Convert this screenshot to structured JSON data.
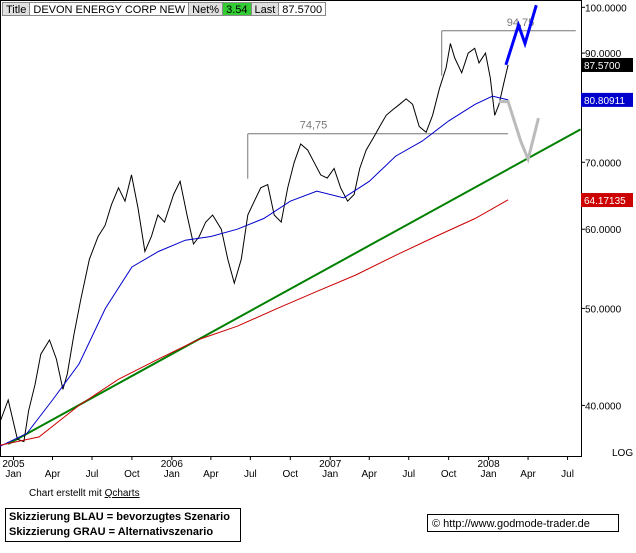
{
  "header": {
    "title_label": "Title",
    "title_value": "DEVON ENERGY CORP NEW",
    "netpct_label": "Net%",
    "netpct_value": "3.54",
    "last_label": "Last",
    "last_value": "87.5700"
  },
  "footer": {
    "created_prefix": "Chart erstellt mit ",
    "created_link": "Qcharts",
    "legend_line1": "Skizzierung BLAU = bevorzugtes Szenario",
    "legend_line2": "Skizzierung GRAU = Alternativszenario",
    "copyright_url": "© http://www.godmode-trader.de"
  },
  "chart_data": {
    "type": "line",
    "scale": "log",
    "ylim": [
      35.6,
      101.7
    ],
    "y_ticks": [
      {
        "value": 100,
        "label": "100.0000"
      },
      {
        "value": 90,
        "label": "90.0000"
      },
      {
        "value": 70,
        "label": "70.0000"
      },
      {
        "value": 60,
        "label": "60.0000"
      },
      {
        "value": 50,
        "label": "50.0000"
      },
      {
        "value": 40,
        "label": "40.0000"
      }
    ],
    "scale_label": "LOG",
    "x_range": [
      "2004-12-01",
      "2008-08-01"
    ],
    "x_ticks": [
      {
        "date": "2005-01-01",
        "label": "2005",
        "sub": "Jan"
      },
      {
        "date": "2005-04-01",
        "label": "",
        "sub": "Apr"
      },
      {
        "date": "2005-07-01",
        "label": "",
        "sub": "Jul"
      },
      {
        "date": "2005-10-01",
        "label": "",
        "sub": "Oct"
      },
      {
        "date": "2006-01-01",
        "label": "2006",
        "sub": "Jan"
      },
      {
        "date": "2006-04-01",
        "label": "",
        "sub": "Apr"
      },
      {
        "date": "2006-07-01",
        "label": "",
        "sub": "Jul"
      },
      {
        "date": "2006-10-01",
        "label": "",
        "sub": "Oct"
      },
      {
        "date": "2007-01-01",
        "label": "2007",
        "sub": "Jan"
      },
      {
        "date": "2007-04-01",
        "label": "",
        "sub": "Apr"
      },
      {
        "date": "2007-07-01",
        "label": "",
        "sub": "Jul"
      },
      {
        "date": "2007-10-01",
        "label": "",
        "sub": "Oct"
      },
      {
        "date": "2008-01-01",
        "label": "2008",
        "sub": "Jan"
      },
      {
        "date": "2008-04-01",
        "label": "",
        "sub": "Apr"
      },
      {
        "date": "2008-07-01",
        "label": "",
        "sub": "Jul"
      }
    ],
    "price_labels": [
      {
        "value": 87.57,
        "label": "87.5700",
        "bg": "#000000",
        "fg": "#ffffff"
      },
      {
        "value": 80.80911,
        "label": "80.80911",
        "bg": "#0000cc",
        "fg": "#ffffff"
      },
      {
        "value": 64.17135,
        "label": "64.17135",
        "bg": "#cc0000",
        "fg": "#ffffff"
      }
    ],
    "annotations": [
      {
        "label": "94,75",
        "value": 94.75,
        "from": "2007-09-15",
        "to": "2008-07-20"
      },
      {
        "label": "74,75",
        "value": 74.75,
        "from": "2006-06-25",
        "to": "2008-02-15"
      }
    ],
    "trendline": {
      "color": "#008000",
      "from": {
        "date": "2004-12-20",
        "value": 36.6
      },
      "to": {
        "date": "2008-07-31",
        "value": 75.5
      }
    },
    "scenario_blue": {
      "color": "#0000ff",
      "points": [
        [
          "2008-02-10",
          87.6
        ],
        [
          "2008-03-10",
          96
        ],
        [
          "2008-03-25",
          92
        ],
        [
          "2008-04-20",
          100.5
        ]
      ]
    },
    "scenario_grey": {
      "color": "#bbbbbb",
      "points": [
        [
          "2008-01-25",
          80.5
        ],
        [
          "2008-02-15",
          80.5
        ],
        [
          "2008-03-15",
          73.5
        ],
        [
          "2008-04-01",
          70.5
        ],
        [
          "2008-04-25",
          77.5
        ]
      ]
    },
    "series": [
      {
        "color": "#000000",
        "points": [
          [
            "2004-12-01",
            38.5
          ],
          [
            "2004-12-20",
            40.5
          ],
          [
            "2005-01-10",
            37
          ],
          [
            "2005-01-25",
            36.8
          ],
          [
            "2005-02-05",
            39.5
          ],
          [
            "2005-02-20",
            42
          ],
          [
            "2005-03-05",
            45
          ],
          [
            "2005-03-25",
            46.5
          ],
          [
            "2005-04-10",
            44.5
          ],
          [
            "2005-04-25",
            41.5
          ],
          [
            "2005-05-05",
            43
          ],
          [
            "2005-05-20",
            47
          ],
          [
            "2005-06-05",
            51
          ],
          [
            "2005-06-25",
            56
          ],
          [
            "2005-07-15",
            59
          ],
          [
            "2005-07-31",
            60.5
          ],
          [
            "2005-08-15",
            63.5
          ],
          [
            "2005-08-31",
            66
          ],
          [
            "2005-09-15",
            64
          ],
          [
            "2005-09-30",
            68
          ],
          [
            "2005-10-15",
            63
          ],
          [
            "2005-10-31",
            57
          ],
          [
            "2005-11-15",
            59
          ],
          [
            "2005-11-30",
            62
          ],
          [
            "2005-12-15",
            61
          ],
          [
            "2006-01-05",
            65
          ],
          [
            "2006-01-20",
            67
          ],
          [
            "2006-02-05",
            62
          ],
          [
            "2006-02-20",
            58
          ],
          [
            "2006-03-05",
            59
          ],
          [
            "2006-03-20",
            61
          ],
          [
            "2006-04-05",
            62
          ],
          [
            "2006-04-25",
            60
          ],
          [
            "2006-05-10",
            56
          ],
          [
            "2006-05-25",
            53
          ],
          [
            "2006-06-10",
            56
          ],
          [
            "2006-06-25",
            62
          ],
          [
            "2006-07-10",
            64
          ],
          [
            "2006-07-25",
            66
          ],
          [
            "2006-08-10",
            66.5
          ],
          [
            "2006-08-25",
            62
          ],
          [
            "2006-09-10",
            61
          ],
          [
            "2006-09-25",
            66
          ],
          [
            "2006-10-10",
            70
          ],
          [
            "2006-10-25",
            73
          ],
          [
            "2006-11-10",
            72
          ],
          [
            "2006-11-25",
            70
          ],
          [
            "2006-12-10",
            68
          ],
          [
            "2006-12-25",
            67.5
          ],
          [
            "2007-01-10",
            69
          ],
          [
            "2007-01-25",
            66
          ],
          [
            "2007-02-10",
            64
          ],
          [
            "2007-02-25",
            65
          ],
          [
            "2007-03-10",
            69
          ],
          [
            "2007-03-25",
            72
          ],
          [
            "2007-04-10",
            74
          ],
          [
            "2007-04-25",
            76
          ],
          [
            "2007-05-10",
            78
          ],
          [
            "2007-05-25",
            79
          ],
          [
            "2007-06-10",
            80
          ],
          [
            "2007-06-25",
            81
          ],
          [
            "2007-07-10",
            80
          ],
          [
            "2007-07-25",
            76
          ],
          [
            "2007-08-10",
            75
          ],
          [
            "2007-08-25",
            78
          ],
          [
            "2007-09-10",
            83
          ],
          [
            "2007-09-25",
            87
          ],
          [
            "2007-10-05",
            92
          ],
          [
            "2007-10-15",
            89
          ],
          [
            "2007-10-31",
            86
          ],
          [
            "2007-11-15",
            90
          ],
          [
            "2007-11-30",
            91
          ],
          [
            "2007-12-10",
            88
          ],
          [
            "2007-12-25",
            90
          ],
          [
            "2008-01-05",
            85
          ],
          [
            "2008-01-15",
            78
          ],
          [
            "2008-01-25",
            80
          ],
          [
            "2008-02-05",
            84
          ],
          [
            "2008-02-15",
            87.57
          ]
        ]
      },
      {
        "color": "#0000cc",
        "points": [
          [
            "2004-12-01",
            36.4
          ],
          [
            "2005-02-01",
            37.5
          ],
          [
            "2005-04-01",
            40.5
          ],
          [
            "2005-06-01",
            44
          ],
          [
            "2005-08-01",
            50
          ],
          [
            "2005-10-01",
            55
          ],
          [
            "2005-12-01",
            57
          ],
          [
            "2006-02-01",
            58.5
          ],
          [
            "2006-04-01",
            59
          ],
          [
            "2006-06-01",
            60
          ],
          [
            "2006-08-01",
            61.5
          ],
          [
            "2006-10-01",
            64
          ],
          [
            "2006-12-01",
            65.5
          ],
          [
            "2007-02-01",
            64.5
          ],
          [
            "2007-04-01",
            67
          ],
          [
            "2007-06-01",
            71
          ],
          [
            "2007-08-01",
            73.5
          ],
          [
            "2007-10-01",
            77
          ],
          [
            "2007-12-01",
            80
          ],
          [
            "2008-01-10",
            81.5
          ],
          [
            "2008-02-15",
            80.8
          ]
        ]
      },
      {
        "color": "#cc0000",
        "points": [
          [
            "2004-12-01",
            36.5
          ],
          [
            "2005-03-01",
            37.2
          ],
          [
            "2005-06-01",
            40
          ],
          [
            "2005-09-01",
            42.5
          ],
          [
            "2005-12-01",
            44.5
          ],
          [
            "2006-03-01",
            46.5
          ],
          [
            "2006-06-01",
            48
          ],
          [
            "2006-09-01",
            50
          ],
          [
            "2006-12-01",
            52
          ],
          [
            "2007-03-01",
            54
          ],
          [
            "2007-06-01",
            56.5
          ],
          [
            "2007-09-01",
            59
          ],
          [
            "2007-12-01",
            61.5
          ],
          [
            "2008-02-15",
            64.2
          ]
        ]
      }
    ]
  }
}
